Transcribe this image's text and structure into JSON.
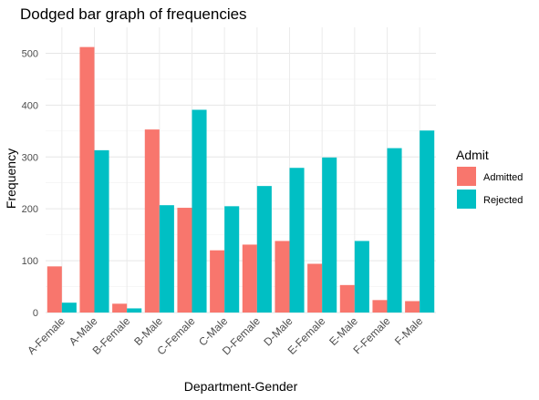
{
  "chart_data": {
    "type": "bar",
    "title": "Dodged bar graph of frequencies",
    "xlabel": "Department-Gender",
    "ylabel": "Frequency",
    "ylim": [
      0,
      550
    ],
    "yticks": [
      0,
      100,
      200,
      300,
      400,
      500
    ],
    "grid": true,
    "legend_position": "right",
    "legend_title": "Admit",
    "categories": [
      "A-Female",
      "A-Male",
      "B-Female",
      "B-Male",
      "C-Female",
      "C-Male",
      "D-Female",
      "D-Male",
      "E-Female",
      "E-Male",
      "F-Female",
      "F-Male"
    ],
    "series": [
      {
        "name": "Admitted",
        "color": "#F8766D",
        "values": [
          89,
          512,
          17,
          353,
          202,
          120,
          131,
          138,
          94,
          53,
          24,
          22
        ]
      },
      {
        "name": "Rejected",
        "color": "#00BFC4",
        "values": [
          19,
          313,
          8,
          207,
          391,
          205,
          244,
          279,
          299,
          138,
          317,
          351
        ]
      }
    ]
  }
}
